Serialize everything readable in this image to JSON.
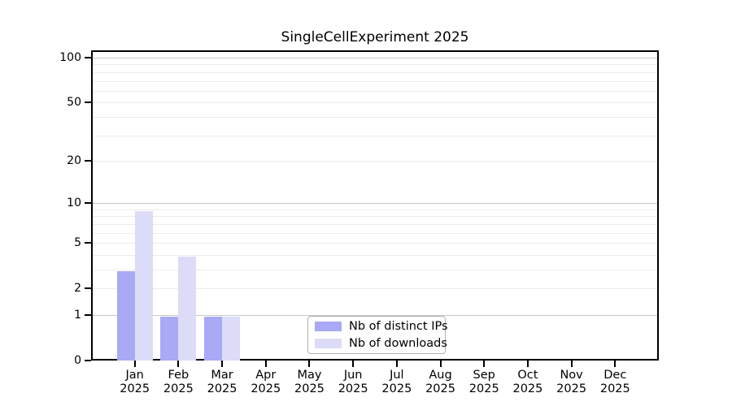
{
  "figure": {
    "title": "SingleCellExperiment 2025"
  },
  "legend": {
    "items": [
      {
        "label": "Nb of distinct IPs",
        "color": "#a9a9f5"
      },
      {
        "label": "Nb of downloads",
        "color": "#dcdcf8"
      }
    ]
  },
  "chart_data": {
    "type": "bar",
    "title": "SingleCellExperiment 2025",
    "xlabel": "",
    "ylabel": "",
    "scale": "log1p",
    "grid": "horizontal",
    "legend_position": "bottom-center-inside",
    "categories": [
      "Jan",
      "Feb",
      "Mar",
      "Apr",
      "May",
      "Jun",
      "Jul",
      "Aug",
      "Sep",
      "Oct",
      "Nov",
      "Dec"
    ],
    "year": "2025",
    "series": [
      {
        "name": "Nb of distinct IPs",
        "color": "#a9a9f5",
        "values": [
          3,
          1,
          1,
          0,
          0,
          0,
          0,
          0,
          0,
          0,
          0,
          0
        ]
      },
      {
        "name": "Nb of downloads",
        "color": "#dcdcf8",
        "values": [
          9,
          4,
          1,
          0,
          0,
          0,
          0,
          0,
          0,
          0,
          0,
          0
        ]
      }
    ],
    "yticks": [
      0,
      1,
      2,
      5,
      10,
      20,
      50,
      100
    ],
    "ylim": [
      0,
      112
    ],
    "minor_gridlines": [
      2,
      3,
      4,
      5,
      6,
      7,
      8,
      9,
      20,
      30,
      40,
      50,
      60,
      70,
      80,
      90
    ],
    "major_gridlines": [
      1,
      10,
      100
    ]
  }
}
